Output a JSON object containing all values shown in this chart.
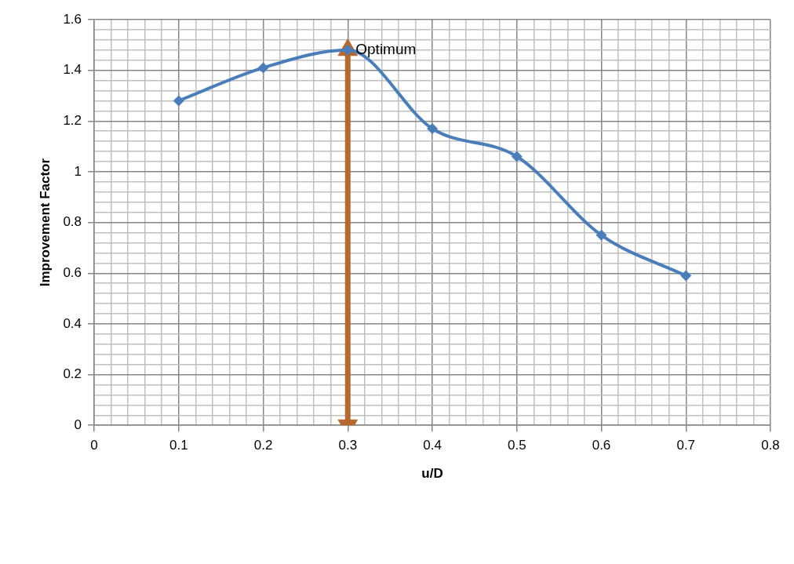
{
  "chart_data": {
    "type": "line",
    "xlabel": "u/D",
    "ylabel": "Improvement Factor",
    "x": [
      0.1,
      0.2,
      0.3,
      0.4,
      0.5,
      0.6,
      0.7
    ],
    "series": [
      {
        "type": "line",
        "color": "#4a7ebb",
        "marker": "diamond",
        "values": [
          1.28,
          1.41,
          1.48,
          1.17,
          1.06,
          0.75,
          0.59
        ]
      },
      {
        "type": "line",
        "color": "#b5692e",
        "marker": "triangle",
        "x": [
          0.3,
          0.3
        ],
        "values": [
          0,
          1.48
        ]
      }
    ],
    "annotations": [
      {
        "text": "Optimum",
        "x": 0.3,
        "y": 1.48
      }
    ],
    "xlim": [
      0,
      0.8
    ],
    "xticks": [
      0,
      {
        "value": 0.02,
        "label": null
      },
      {
        "value": 0.04,
        "label": null
      },
      {
        "value": 0.06,
        "label": null
      },
      {
        "value": 0.08,
        "label": null
      },
      0.1,
      {
        "value": 0.12,
        "label": null
      },
      {
        "value": 0.14,
        "label": null
      },
      {
        "value": 0.16,
        "label": null
      },
      {
        "value": 0.18,
        "label": null
      },
      0.2,
      {
        "value": 0.22,
        "label": null
      },
      {
        "value": 0.24,
        "label": null
      },
      {
        "value": 0.26,
        "label": null
      },
      {
        "value": 0.28,
        "label": null
      },
      0.3,
      {
        "value": 0.32,
        "label": null
      },
      {
        "value": 0.34,
        "label": null
      },
      {
        "value": 0.36,
        "label": null
      },
      {
        "value": 0.38,
        "label": null
      },
      0.4,
      {
        "value": 0.42,
        "label": null
      },
      {
        "value": 0.44,
        "label": null
      },
      {
        "value": 0.46,
        "label": null
      },
      {
        "value": 0.48,
        "label": null
      },
      0.5,
      {
        "value": 0.52,
        "label": null
      },
      {
        "value": 0.54,
        "label": null
      },
      {
        "value": 0.56,
        "label": null
      },
      {
        "value": 0.58,
        "label": null
      },
      0.6,
      {
        "value": 0.62,
        "label": null
      },
      {
        "value": 0.64,
        "label": null
      },
      {
        "value": 0.66,
        "label": null
      },
      {
        "value": 0.68,
        "label": null
      },
      0.7,
      {
        "value": 0.72,
        "label": null
      },
      {
        "value": 0.74,
        "label": null
      },
      {
        "value": 0.76,
        "label": null
      },
      {
        "value": 0.78,
        "label": null
      },
      0.8
    ],
    "ylim": [
      0,
      1.6
    ],
    "yticks": [
      0,
      {
        "value": 0.04,
        "label": null
      },
      {
        "value": 0.08,
        "label": null
      },
      {
        "value": 0.12,
        "label": null
      },
      {
        "value": 0.16,
        "label": null
      },
      0.2,
      {
        "value": 0.24,
        "label": null
      },
      {
        "value": 0.28,
        "label": null
      },
      {
        "value": 0.32,
        "label": null
      },
      {
        "value": 0.36,
        "label": null
      },
      0.4,
      {
        "value": 0.44,
        "label": null
      },
      {
        "value": 0.48,
        "label": null
      },
      {
        "value": 0.52,
        "label": null
      },
      {
        "value": 0.56,
        "label": null
      },
      0.6,
      {
        "value": 0.64,
        "label": null
      },
      {
        "value": 0.68,
        "label": null
      },
      {
        "value": 0.72,
        "label": null
      },
      {
        "value": 0.76,
        "label": null
      },
      0.8,
      {
        "value": 0.84,
        "label": null
      },
      {
        "value": 0.88,
        "label": null
      },
      {
        "value": 0.92,
        "label": null
      },
      {
        "value": 0.96,
        "label": null
      },
      1,
      {
        "value": 1.04,
        "label": null
      },
      {
        "value": 1.08,
        "label": null
      },
      {
        "value": 1.12,
        "label": null
      },
      {
        "value": 1.16,
        "label": null
      },
      1.2,
      {
        "value": 1.24,
        "label": null
      },
      {
        "value": 1.28,
        "label": null
      },
      {
        "value": 1.32,
        "label": null
      },
      {
        "value": 1.36,
        "label": null
      },
      1.4,
      {
        "value": 1.44,
        "label": null
      },
      {
        "value": 1.48,
        "label": null
      },
      {
        "value": 1.52,
        "label": null
      },
      {
        "value": 1.56,
        "label": null
      },
      1.6
    ],
    "grid": true,
    "legend": false
  }
}
